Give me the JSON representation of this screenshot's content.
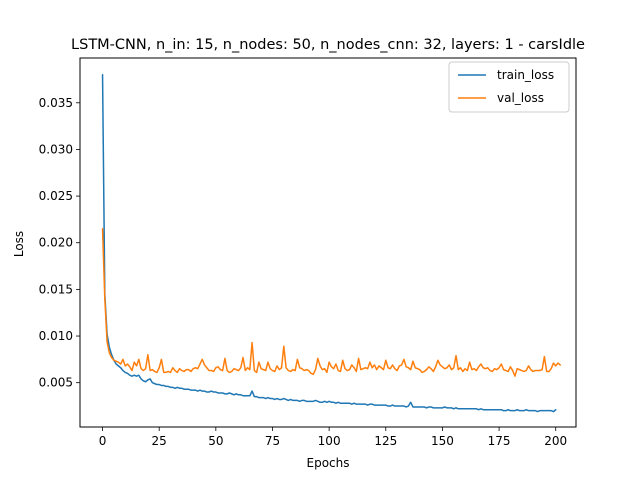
{
  "chart_data": {
    "type": "line",
    "title": "LSTM-CNN, n_in: 15, n_nodes: 50, n_nodes_cnn: 32, layers: 1 - carsIdle",
    "xlabel": "Epochs",
    "ylabel": "Loss",
    "xlim": [
      -9.95,
      208.95
    ],
    "ylim": [
      0.00025,
      0.0398
    ],
    "xticks": [
      0,
      25,
      50,
      75,
      100,
      125,
      150,
      175,
      200
    ],
    "yticks": [
      0.005,
      0.01,
      0.015,
      0.02,
      0.025,
      0.03,
      0.035
    ],
    "xtick_labels": [
      "0",
      "25",
      "50",
      "75",
      "100",
      "125",
      "150",
      "175",
      "200"
    ],
    "ytick_labels": [
      "0.005",
      "0.010",
      "0.015",
      "0.020",
      "0.025",
      "0.030",
      "0.035"
    ],
    "grid": false,
    "legend_position": "top-right",
    "series": [
      {
        "name": "train_loss",
        "color": "#1f77b4",
        "values": [
          0.038,
          0.0145,
          0.0102,
          0.0088,
          0.008,
          0.0074,
          0.007,
          0.0068,
          0.0066,
          0.0063,
          0.0061,
          0.006,
          0.0058,
          0.0057,
          0.0058,
          0.0057,
          0.0058,
          0.0054,
          0.0052,
          0.0051,
          0.0053,
          0.0054,
          0.005,
          0.0049,
          0.0048,
          0.0048,
          0.0047,
          0.0047,
          0.0046,
          0.0046,
          0.0045,
          0.0045,
          0.0044,
          0.0045,
          0.0044,
          0.0044,
          0.0043,
          0.0043,
          0.0043,
          0.0042,
          0.0042,
          0.0042,
          0.0041,
          0.0042,
          0.0041,
          0.0041,
          0.004,
          0.004,
          0.0041,
          0.004,
          0.004,
          0.0039,
          0.0039,
          0.0039,
          0.0038,
          0.0038,
          0.0039,
          0.0038,
          0.0037,
          0.0038,
          0.0037,
          0.0037,
          0.0036,
          0.0036,
          0.0036,
          0.0036,
          0.0041,
          0.0035,
          0.0035,
          0.0034,
          0.0034,
          0.0034,
          0.0033,
          0.0034,
          0.0033,
          0.0033,
          0.0032,
          0.0033,
          0.0032,
          0.0032,
          0.0033,
          0.0032,
          0.0031,
          0.0032,
          0.0031,
          0.0031,
          0.0031,
          0.003,
          0.0031,
          0.0031,
          0.003,
          0.003,
          0.003,
          0.003,
          0.0031,
          0.003,
          0.0029,
          0.0029,
          0.003,
          0.0029,
          0.003,
          0.0029,
          0.0029,
          0.0028,
          0.0029,
          0.0028,
          0.0028,
          0.0028,
          0.0028,
          0.0028,
          0.0027,
          0.0028,
          0.0027,
          0.0027,
          0.0027,
          0.0027,
          0.0027,
          0.0026,
          0.0027,
          0.0027,
          0.0026,
          0.0026,
          0.0026,
          0.0026,
          0.0026,
          0.0026,
          0.0025,
          0.0025,
          0.0026,
          0.0025,
          0.0025,
          0.0025,
          0.0025,
          0.0025,
          0.0024,
          0.0025,
          0.0029,
          0.0024,
          0.0024,
          0.0024,
          0.0024,
          0.0024,
          0.0024,
          0.0023,
          0.0024,
          0.0024,
          0.0023,
          0.0023,
          0.0023,
          0.0023,
          0.0023,
          0.0024,
          0.0023,
          0.0023,
          0.0023,
          0.0022,
          0.0023,
          0.0022,
          0.0022,
          0.0022,
          0.0022,
          0.0022,
          0.0022,
          0.0022,
          0.0022,
          0.0022,
          0.0021,
          0.0022,
          0.0021,
          0.0021,
          0.0021,
          0.0021,
          0.0021,
          0.0021,
          0.0021,
          0.0021,
          0.0021,
          0.002,
          0.002,
          0.0021,
          0.002,
          0.002,
          0.002,
          0.0021,
          0.002,
          0.002,
          0.002,
          0.0021,
          0.002,
          0.002,
          0.002,
          0.002,
          0.0019,
          0.002,
          0.002,
          0.002,
          0.002,
          0.002,
          0.002,
          0.0019,
          0.0021
        ]
      },
      {
        "name": "val_loss",
        "color": "#ff7f0e",
        "values": [
          0.0215,
          0.014,
          0.0094,
          0.0082,
          0.0077,
          0.0074,
          0.0073,
          0.0072,
          0.007,
          0.0075,
          0.0068,
          0.007,
          0.0067,
          0.0063,
          0.0072,
          0.0068,
          0.0075,
          0.0065,
          0.0063,
          0.0065,
          0.008,
          0.0063,
          0.0064,
          0.0062,
          0.0061,
          0.0066,
          0.0075,
          0.0061,
          0.0061,
          0.0062,
          0.0061,
          0.0066,
          0.0063,
          0.0061,
          0.0065,
          0.0063,
          0.0062,
          0.0064,
          0.0064,
          0.0062,
          0.0065,
          0.0066,
          0.0065,
          0.007,
          0.0075,
          0.0069,
          0.0066,
          0.0063,
          0.0063,
          0.0062,
          0.0066,
          0.0067,
          0.0064,
          0.0063,
          0.0076,
          0.0063,
          0.0061,
          0.0062,
          0.0065,
          0.0064,
          0.0063,
          0.0066,
          0.0077,
          0.0063,
          0.0066,
          0.0064,
          0.0093,
          0.0063,
          0.0061,
          0.0072,
          0.0065,
          0.0064,
          0.0063,
          0.0072,
          0.0065,
          0.0063,
          0.0062,
          0.0068,
          0.0064,
          0.0066,
          0.0089,
          0.0066,
          0.0063,
          0.0062,
          0.0064,
          0.0063,
          0.0075,
          0.0066,
          0.0065,
          0.0063,
          0.0064,
          0.0063,
          0.006,
          0.0059,
          0.0064,
          0.0076,
          0.0068,
          0.0064,
          0.0065,
          0.0061,
          0.0072,
          0.0067,
          0.0065,
          0.007,
          0.0063,
          0.0062,
          0.0074,
          0.0065,
          0.0063,
          0.0064,
          0.0069,
          0.0066,
          0.0062,
          0.0076,
          0.0064,
          0.0065,
          0.0066,
          0.0065,
          0.0072,
          0.0066,
          0.0069,
          0.0064,
          0.0068,
          0.0066,
          0.0064,
          0.0074,
          0.0066,
          0.0065,
          0.0069,
          0.0065,
          0.0063,
          0.0068,
          0.0069,
          0.0075,
          0.0067,
          0.0066,
          0.0064,
          0.0073,
          0.0066,
          0.0065,
          0.0064,
          0.0061,
          0.0062,
          0.0064,
          0.0067,
          0.0065,
          0.0062,
          0.0067,
          0.0074,
          0.0069,
          0.0067,
          0.0065,
          0.0066,
          0.0069,
          0.0064,
          0.0066,
          0.0079,
          0.0064,
          0.0066,
          0.0062,
          0.0065,
          0.0063,
          0.0072,
          0.0064,
          0.0065,
          0.0063,
          0.0067,
          0.007,
          0.0066,
          0.0065,
          0.0066,
          0.0063,
          0.0062,
          0.0065,
          0.0064,
          0.0066,
          0.007,
          0.0064,
          0.0063,
          0.0062,
          0.0067,
          0.0063,
          0.0057,
          0.0065,
          0.0064,
          0.0063,
          0.0062,
          0.0063,
          0.0068,
          0.0064,
          0.0062,
          0.0063,
          0.0063,
          0.0063,
          0.0064,
          0.0078,
          0.0062,
          0.0062,
          0.0065,
          0.0071,
          0.0068,
          0.0071,
          0.0069
        ]
      }
    ]
  }
}
